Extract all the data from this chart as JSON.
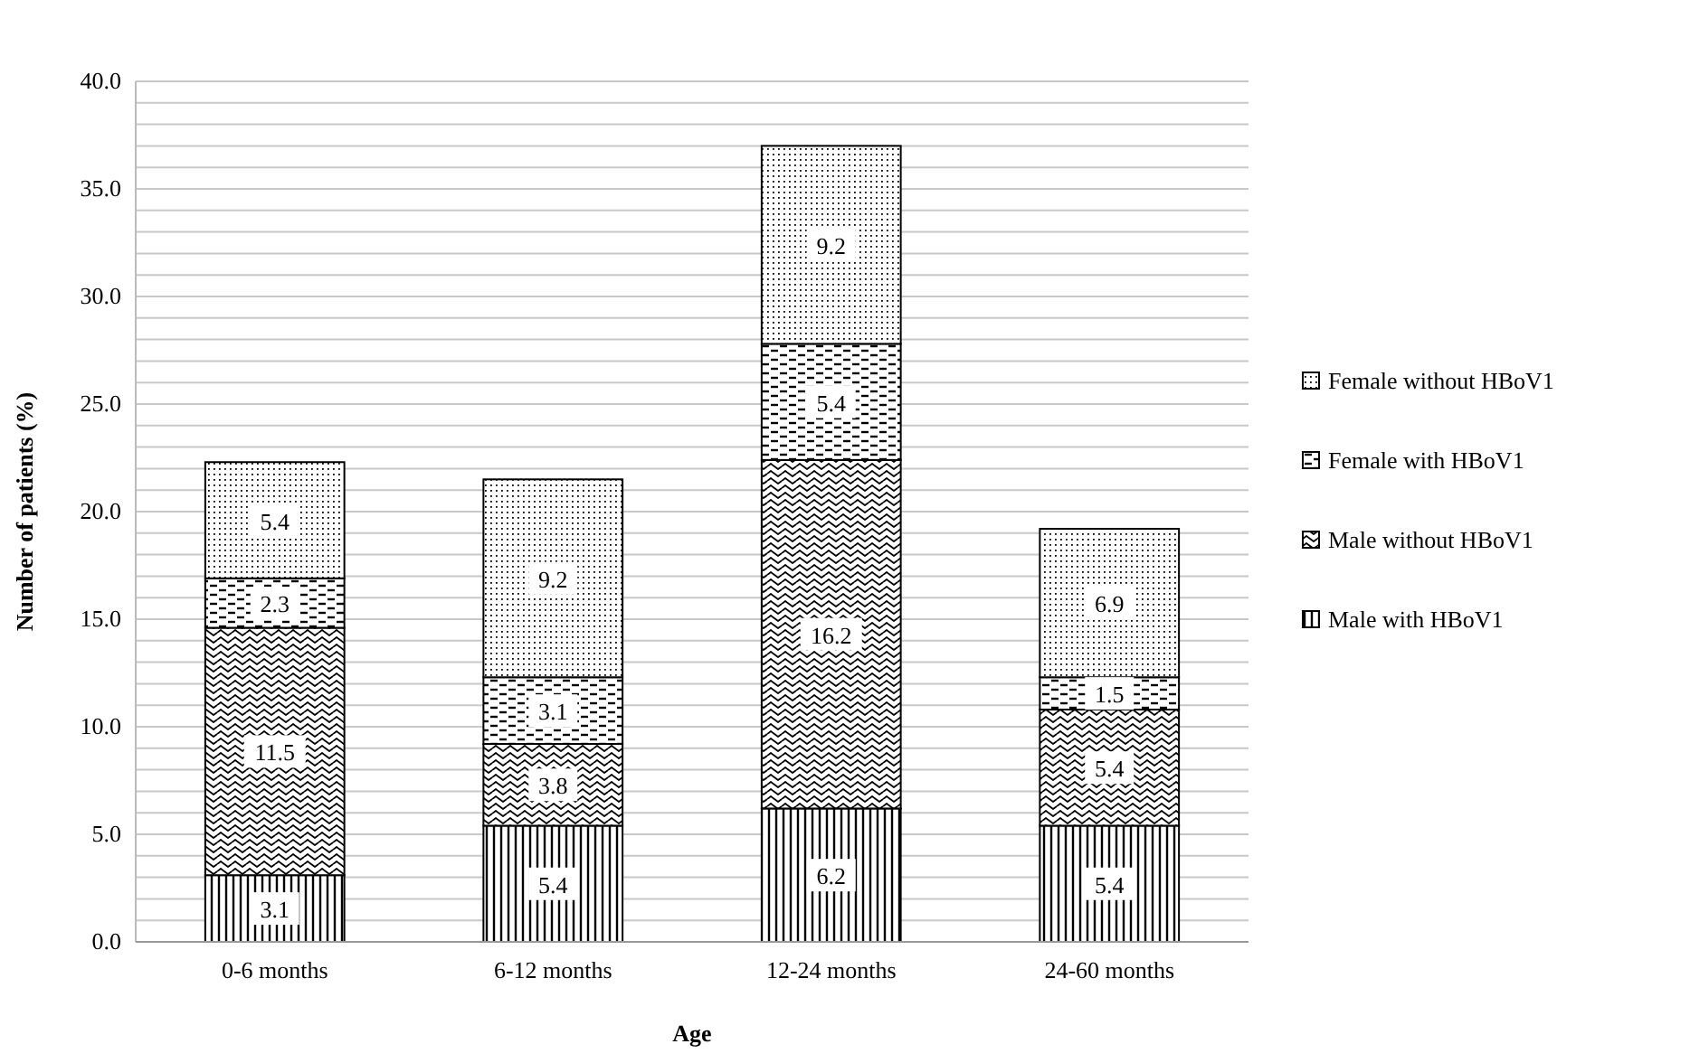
{
  "chart_data": {
    "type": "bar",
    "stacked": true,
    "xlabel": "Age",
    "ylabel": "Number of patients  (%)",
    "categories": [
      "0-6 months",
      "6-12 months",
      "12-24 months",
      "24-60 months"
    ],
    "series": [
      {
        "name": "Male with HBoV1",
        "color": "#000000",
        "values": [
          3.1,
          5.4,
          6.2,
          5.4
        ]
      },
      {
        "name": "Male without HBoV1",
        "color": "#000000",
        "values": [
          11.5,
          3.8,
          16.2,
          5.4
        ]
      },
      {
        "name": "Female with HBoV1",
        "color": "#000000",
        "values": [
          2.3,
          3.1,
          5.4,
          1.5
        ]
      },
      {
        "name": "Female without HBoV1",
        "color": "#000000",
        "values": [
          5.4,
          9.2,
          9.2,
          6.9
        ]
      }
    ],
    "ylim": [
      0,
      40
    ],
    "yticks": [
      {
        "value": 0,
        "label": "0.0"
      },
      {
        "value": 1,
        "label": null
      },
      {
        "value": 2,
        "label": null
      },
      {
        "value": 3,
        "label": null
      },
      {
        "value": 4,
        "label": null
      },
      {
        "value": 5,
        "label": "5.0"
      },
      {
        "value": 6,
        "label": null
      },
      {
        "value": 7,
        "label": null
      },
      {
        "value": 8,
        "label": null
      },
      {
        "value": 9,
        "label": null
      },
      {
        "value": 10,
        "label": "10.0"
      },
      {
        "value": 11,
        "label": null
      },
      {
        "value": 12,
        "label": null
      },
      {
        "value": 13,
        "label": null
      },
      {
        "value": 14,
        "label": null
      },
      {
        "value": 15,
        "label": "15.0"
      },
      {
        "value": 16,
        "label": null
      },
      {
        "value": 17,
        "label": null
      },
      {
        "value": 18,
        "label": null
      },
      {
        "value": 19,
        "label": null
      },
      {
        "value": 20,
        "label": "20.0"
      },
      {
        "value": 21,
        "label": null
      },
      {
        "value": 22,
        "label": null
      },
      {
        "value": 23,
        "label": null
      },
      {
        "value": 24,
        "label": null
      },
      {
        "value": 25,
        "label": "25.0"
      },
      {
        "value": 26,
        "label": null
      },
      {
        "value": 27,
        "label": null
      },
      {
        "value": 28,
        "label": null
      },
      {
        "value": 29,
        "label": null
      },
      {
        "value": 30,
        "label": "30.0"
      },
      {
        "value": 31,
        "label": null
      },
      {
        "value": 32,
        "label": null
      },
      {
        "value": 33,
        "label": null
      },
      {
        "value": 34,
        "label": null
      },
      {
        "value": 35,
        "label": "35.0"
      },
      {
        "value": 36,
        "label": null
      },
      {
        "value": 37,
        "label": null
      },
      {
        "value": 38,
        "label": null
      },
      {
        "value": 39,
        "label": null
      },
      {
        "value": 40,
        "label": "40.0"
      }
    ],
    "grid": "y",
    "legend": "right",
    "data_labels": true
  }
}
